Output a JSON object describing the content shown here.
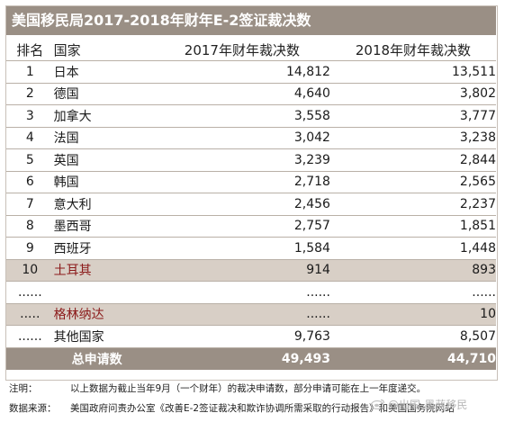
{
  "title": "美国移民局2017-2018年财年E-2签证裁决数",
  "headers": {
    "rank": "排名",
    "country": "国家",
    "fy2017": "2017年财年裁决数",
    "fy2018": "2018年财年裁决数"
  },
  "rows": [
    {
      "rank": "1",
      "country": "日本",
      "fy2017": "14,812",
      "fy2018": "13,511"
    },
    {
      "rank": "2",
      "country": "德国",
      "fy2017": "4,640",
      "fy2018": "3,802"
    },
    {
      "rank": "3",
      "country": "加拿大",
      "fy2017": "3,558",
      "fy2018": "3,777"
    },
    {
      "rank": "4",
      "country": "法国",
      "fy2017": "3,042",
      "fy2018": "3,238"
    },
    {
      "rank": "5",
      "country": "英国",
      "fy2017": "3,239",
      "fy2018": "2,844"
    },
    {
      "rank": "6",
      "country": "韩国",
      "fy2017": "2,718",
      "fy2018": "2,565"
    },
    {
      "rank": "7",
      "country": "意大利",
      "fy2017": "2,456",
      "fy2018": "2,237"
    },
    {
      "rank": "8",
      "country": "墨西哥",
      "fy2017": "2,757",
      "fy2018": "1,851"
    },
    {
      "rank": "9",
      "country": "西班牙",
      "fy2017": "1,584",
      "fy2018": "1,448"
    },
    {
      "rank": "10",
      "country": "土耳其",
      "fy2017": "914",
      "fy2018": "893"
    },
    {
      "rank": "......",
      "country": "",
      "fy2017": "......",
      "fy2018": "......"
    },
    {
      "rank": ".....",
      "country": "格林纳达",
      "fy2017": "......",
      "fy2018": "10"
    },
    {
      "rank": "......",
      "country": "其他国家",
      "fy2017": "9,763",
      "fy2018": "8,507"
    }
  ],
  "total": {
    "label": "总申请数",
    "fy2017": "49,493",
    "fy2018": "44,710"
  },
  "notes": {
    "note_label": "注明：",
    "note_text": "以上数据为截止当年9月（一个财年）的裁决申请数，部分申请可能在上一年度递交。",
    "source_label": "数据来源：",
    "source_text": "美国政府问责办公室《改善E-2签证裁决和欺诈协调所需采取的行动报告》和美国国务院网站"
  },
  "watermark": "@出国-墨蓝移民"
}
